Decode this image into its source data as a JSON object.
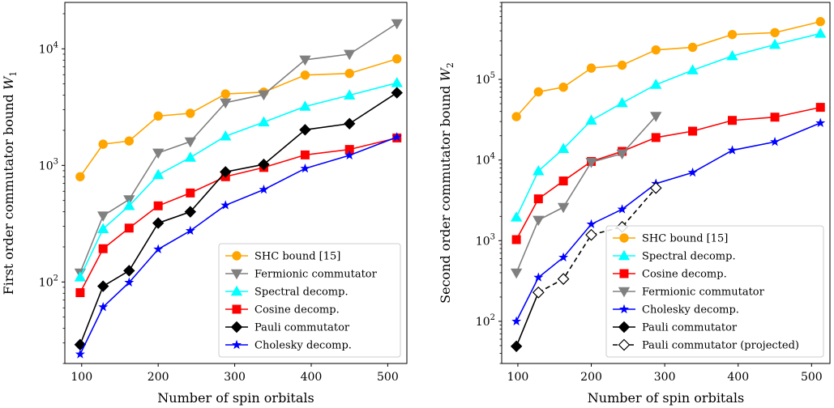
{
  "chart_data": [
    {
      "type": "line",
      "id": "left",
      "xlabel": "Number of spin orbitals",
      "ylabel": "First order commutator bound W",
      "ylabel_sub": "1",
      "xscale": "linear",
      "yscale": "log",
      "xlim": [
        78,
        525
      ],
      "ylim": [
        20,
        25000
      ],
      "xticks": [
        100,
        200,
        300,
        400,
        500
      ],
      "yticks": [
        {
          "value": 100,
          "base": "10",
          "exp": "2"
        },
        {
          "value": 1000,
          "base": "10",
          "exp": "3"
        },
        {
          "value": 10000,
          "base": "10",
          "exp": "4"
        }
      ],
      "grid": false,
      "legend_position": "lower-right",
      "series": [
        {
          "name": "SHC bound [15]",
          "color": "#ffa500",
          "marker": "circle",
          "dashed": false,
          "x": [
            98,
            128,
            162,
            200,
            242,
            288,
            338,
            392,
            450,
            512
          ],
          "y": [
            800,
            1520,
            1620,
            2650,
            2800,
            4100,
            4250,
            5950,
            6150,
            8200
          ]
        },
        {
          "name": "Fermionic commutator",
          "color": "#808080",
          "marker": "triangle-down",
          "dashed": false,
          "x": [
            98,
            128,
            162,
            200,
            242,
            288,
            338,
            392,
            450,
            512
          ],
          "y": [
            120,
            370,
            510,
            1280,
            1600,
            3450,
            4050,
            8050,
            9000,
            16500
          ]
        },
        {
          "name": "Spectral decomp.",
          "color": "#00ffff",
          "marker": "triangle-up",
          "dashed": false,
          "x": [
            98,
            128,
            162,
            200,
            242,
            288,
            338,
            392,
            450,
            512
          ],
          "y": [
            110,
            285,
            450,
            830,
            1170,
            1780,
            2350,
            3200,
            4000,
            5100
          ]
        },
        {
          "name": "Cosine decomp.",
          "color": "#ff0000",
          "marker": "square",
          "dashed": false,
          "x": [
            98,
            128,
            162,
            200,
            242,
            288,
            338,
            392,
            450,
            512
          ],
          "y": [
            81,
            193,
            290,
            450,
            580,
            800,
            960,
            1230,
            1370,
            1720
          ]
        },
        {
          "name": "Pauli commutator",
          "color": "#000000",
          "marker": "diamond",
          "dashed": false,
          "x": [
            98,
            128,
            162,
            200,
            242,
            288,
            338,
            392,
            450,
            512
          ],
          "y": [
            29,
            92,
            125,
            320,
            400,
            880,
            1020,
            2020,
            2280,
            4200
          ]
        },
        {
          "name": "Cholesky decomp.",
          "color": "#0000ff",
          "marker": "star",
          "dashed": false,
          "x": [
            98,
            128,
            162,
            200,
            242,
            288,
            338,
            392,
            450,
            512
          ],
          "y": [
            24,
            61,
            99,
            191,
            275,
            455,
            620,
            940,
            1220,
            1750
          ]
        }
      ]
    },
    {
      "type": "line",
      "id": "right",
      "xlabel": "Number of spin orbitals",
      "ylabel": "Second order commutator bound W",
      "ylabel_sub": "2",
      "xscale": "linear",
      "yscale": "log",
      "xlim": [
        78,
        525
      ],
      "ylim": [
        30,
        900000
      ],
      "xticks": [
        100,
        200,
        300,
        400,
        500
      ],
      "yticks": [
        {
          "value": 100,
          "base": "10",
          "exp": "2"
        },
        {
          "value": 1000,
          "base": "10",
          "exp": "3"
        },
        {
          "value": 10000,
          "base": "10",
          "exp": "4"
        },
        {
          "value": 100000,
          "base": "10",
          "exp": "5"
        }
      ],
      "grid": false,
      "legend_position": "lower-right",
      "series": [
        {
          "name": "SHC bound [15]",
          "color": "#ffa500",
          "marker": "circle",
          "dashed": false,
          "x": [
            98,
            128,
            162,
            200,
            242,
            288,
            338,
            392,
            450,
            512
          ],
          "y": [
            34500,
            70000,
            80000,
            138000,
            150000,
            232000,
            250000,
            360000,
            380000,
            520000
          ]
        },
        {
          "name": "Spectral decomp.",
          "color": "#00ffff",
          "marker": "triangle-up",
          "dashed": false,
          "x": [
            98,
            128,
            162,
            200,
            242,
            288,
            338,
            392,
            450,
            512
          ],
          "y": [
            1950,
            7300,
            13800,
            31000,
            51000,
            86000,
            130000,
            195000,
            270000,
            370000
          ]
        },
        {
          "name": "Cosine decomp.",
          "color": "#ff0000",
          "marker": "square",
          "dashed": false,
          "x": [
            98,
            128,
            162,
            200,
            242,
            288,
            338,
            392,
            450,
            512
          ],
          "y": [
            1030,
            3300,
            5500,
            9600,
            12800,
            19000,
            22800,
            31000,
            34000,
            45000
          ]
        },
        {
          "name": "Fermionic commutator",
          "color": "#808080",
          "marker": "triangle-down",
          "dashed": false,
          "x": [
            98,
            128,
            162,
            200,
            242,
            288
          ],
          "y": [
            400,
            1800,
            2600,
            9400,
            12000,
            35000
          ]
        },
        {
          "name": "Cholesky decomp.",
          "color": "#0000ff",
          "marker": "star",
          "dashed": false,
          "x": [
            98,
            128,
            162,
            200,
            242,
            288,
            338,
            392,
            450,
            512
          ],
          "y": [
            100,
            350,
            620,
            1600,
            2450,
            5100,
            7000,
            13200,
            16800,
            28800
          ]
        },
        {
          "name": "Pauli commutator",
          "color": "#000000",
          "marker": "diamond",
          "dashed": false,
          "x": [
            98,
            128
          ],
          "y": [
            49,
            228
          ]
        },
        {
          "name": "Pauli commutator (projected)",
          "color": "#000000",
          "marker": "diamond-open",
          "dashed": true,
          "x": [
            128,
            162,
            200,
            242,
            288
          ],
          "y": [
            228,
            335,
            1180,
            1480,
            4500
          ]
        }
      ]
    }
  ]
}
